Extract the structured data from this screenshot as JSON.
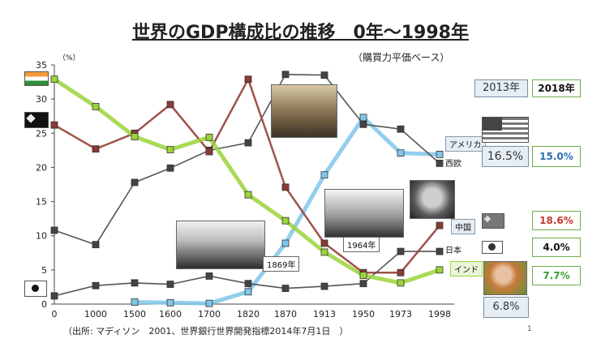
{
  "title": "世界のGDP構成比の推移　0年～1998年",
  "subtitle": "（購買力平価ベース）",
  "unit_label": "（%）",
  "source": "（出所: マディソン　2001、世界銀行世界開発指標2014年7月1日　）",
  "page_number": "1",
  "chart_data": {
    "type": "line",
    "categories": [
      "0",
      "1000",
      "1500",
      "1600",
      "1700",
      "1820",
      "1870",
      "1913",
      "1950",
      "1973",
      "1998"
    ],
    "ylim": [
      0,
      35
    ],
    "yticks": [
      "0",
      "5",
      "10",
      "15",
      "20",
      "25",
      "30",
      "35"
    ],
    "grid": false,
    "series": [
      {
        "name": "アメリカ",
        "color": "#7fc6ea",
        "values": [
          null,
          null,
          0.3,
          0.2,
          0.1,
          1.8,
          8.9,
          18.9,
          27.3,
          22.1,
          21.9
        ]
      },
      {
        "name": "西欧",
        "color": "#555555",
        "values": [
          10.8,
          8.7,
          17.8,
          19.9,
          22.5,
          23.6,
          33.6,
          33.5,
          26.3,
          25.6,
          20.6
        ]
      },
      {
        "name": "中国",
        "color": "#a0524a",
        "values": [
          26.2,
          22.7,
          25.0,
          29.2,
          22.3,
          32.9,
          17.1,
          8.9,
          4.6,
          4.6,
          11.5
        ]
      },
      {
        "name": "日本",
        "color": "#555555",
        "values": [
          1.2,
          2.7,
          3.1,
          2.9,
          4.1,
          3.0,
          2.3,
          2.6,
          3.0,
          7.7,
          7.7
        ]
      },
      {
        "name": "インド",
        "color": "#9bd33a",
        "values": [
          32.9,
          28.9,
          24.5,
          22.6,
          24.4,
          16.0,
          12.2,
          7.6,
          4.2,
          3.1,
          5.0
        ]
      }
    ]
  },
  "compare": {
    "header_2013": "2013年",
    "header_2018": "2018年",
    "usa_2013": "16.5%",
    "usa_2018": "15.0%",
    "china_2018": "18.6%",
    "japan_2018": "4.0%",
    "india_2018": "7.7%",
    "india_2013": "6.8%",
    "colors": {
      "usa": "#2e6db4",
      "china": "#c0392b",
      "japan": "#111111",
      "india": "#3a9b2e"
    }
  },
  "series_labels": {
    "america": "アメリカ",
    "west_europe": "西欧",
    "china": "中国",
    "japan": "日本",
    "india": "インド"
  },
  "photo_captions": {
    "train_1869": "1869年",
    "shinkansen_1964": "1964年"
  }
}
